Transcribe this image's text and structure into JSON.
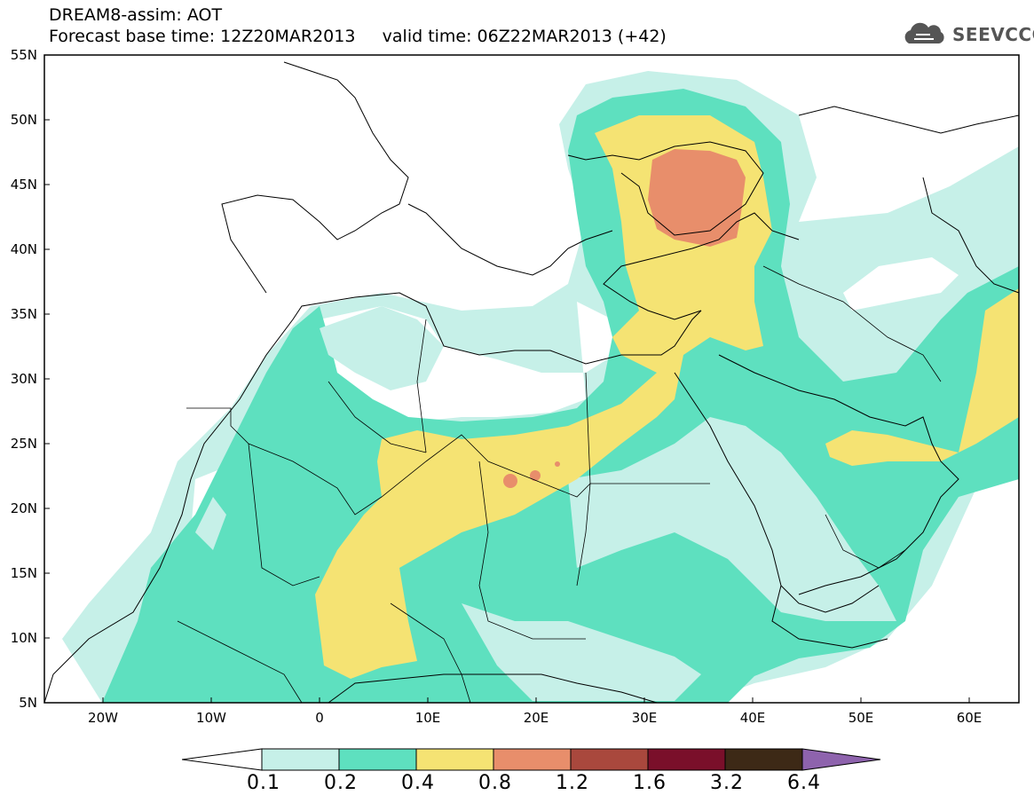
{
  "header": {
    "title_line1": "DREAM8-assim: AOT",
    "title_line2": "Forecast base time: 12Z20MAR2013     valid time: 06Z22MAR2013 (+42)",
    "logo_text": "SEEVCCC",
    "logo_icon": "cloud-icon"
  },
  "map": {
    "latitude_labels": [
      "55N",
      "50N",
      "45N",
      "40N",
      "35N",
      "30N",
      "25N",
      "20N",
      "15N",
      "10N",
      "5N"
    ],
    "longitude_labels": [
      "20W",
      "10W",
      "0",
      "10E",
      "20E",
      "30E",
      "40E",
      "50E",
      "60E"
    ],
    "regions": [
      {
        "level": "0.1-0.2",
        "area": "outer dust envelope over North Africa, Mediterranean and Eastern Europe"
      },
      {
        "level": "0.2-0.4",
        "area": "Sahel, Sahara, Levant band, Arabian Peninsula"
      },
      {
        "level": "0.4-0.8",
        "area": "central Sahara to Levant plume, Black Sea region"
      },
      {
        "level": "0.8-1.2",
        "area": "Black Sea / Ukraine maximum, small cells over Chad"
      }
    ]
  },
  "colorbar": {
    "labels": [
      "0.1",
      "0.2",
      "0.4",
      "0.8",
      "1.2",
      "1.6",
      "3.2",
      "6.4"
    ],
    "colors": [
      "#ffffff",
      "#c6f0e8",
      "#5ee0bf",
      "#f5e373",
      "#e88e6b",
      "#a9483d",
      "#7a0f2a",
      "#3d2916",
      "#8e63ad"
    ]
  }
}
